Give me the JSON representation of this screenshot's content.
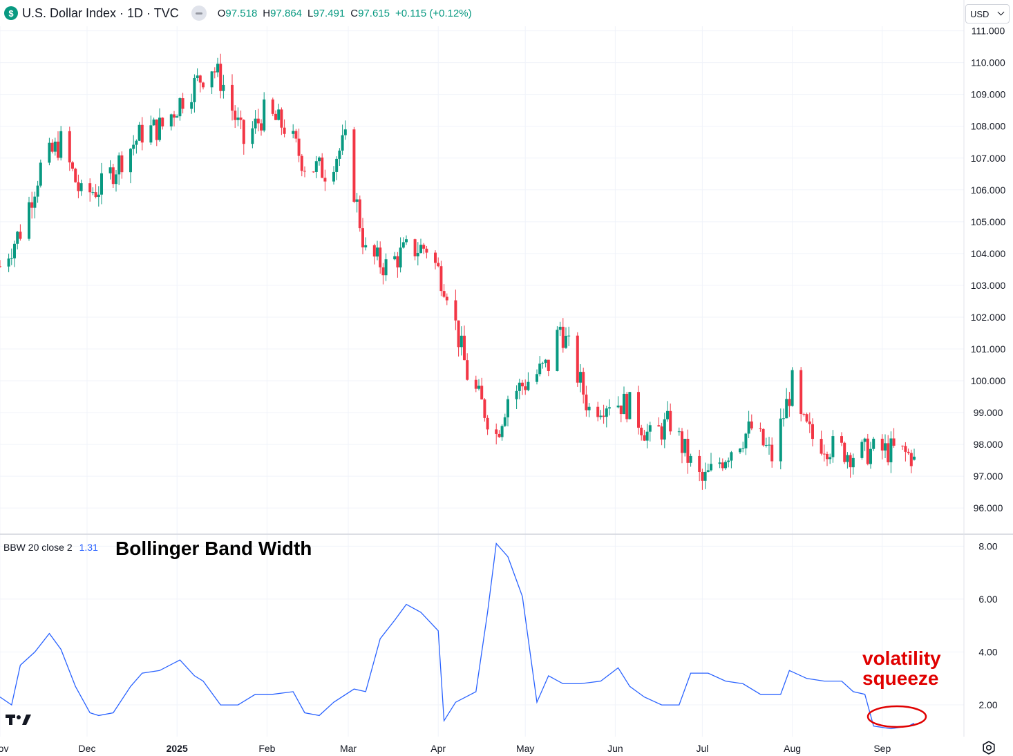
{
  "header": {
    "symbol_badge": "$",
    "title": "U.S. Dollar Index · 1D · TVC",
    "ohlc": [
      {
        "k": "O",
        "v": "97.518"
      },
      {
        "k": "H",
        "v": "97.864"
      },
      {
        "k": "L",
        "v": "97.491"
      },
      {
        "k": "C",
        "v": "97.615"
      }
    ],
    "change": "+0.115 (+0.12%)",
    "currency": "USD"
  },
  "colors": {
    "up": "#089981",
    "down": "#f23645",
    "bbw_line": "#2962ff",
    "annotation": "#e00000"
  },
  "indicator": {
    "name": "BBW 20 close 2",
    "value": "1.31",
    "title": "Bollinger Band Width"
  },
  "annotation": {
    "line1": "volatility",
    "line2": "squeeze"
  },
  "chart_data": [
    {
      "type": "candlestick",
      "title": "U.S. Dollar Index · 1D · TVC",
      "y_ticks": [
        "96.000",
        "97.000",
        "98.000",
        "99.000",
        "100.000",
        "101.000",
        "102.000",
        "103.000",
        "104.000",
        "105.000",
        "106.000",
        "107.000",
        "108.000",
        "109.000",
        "110.000",
        "111.000"
      ],
      "ylim": [
        95.2,
        111.1
      ],
      "x_ticks": [
        "Nov",
        "Dec",
        "2025",
        "Feb",
        "Mar",
        "Apr",
        "May",
        "Jun",
        "Jul",
        "Aug",
        "Sep"
      ],
      "period": "2024-11-01 to 2025-09-12",
      "close_series": [
        {
          "date": "2024-11-01",
          "close": 103.6
        },
        {
          "date": "2024-11-08",
          "close": 104.7
        },
        {
          "date": "2024-11-15",
          "close": 106.7
        },
        {
          "date": "2024-11-22",
          "close": 107.5
        },
        {
          "date": "2024-11-29",
          "close": 105.8
        },
        {
          "date": "2024-12-06",
          "close": 106.1
        },
        {
          "date": "2024-12-13",
          "close": 107.0
        },
        {
          "date": "2024-12-20",
          "close": 107.8
        },
        {
          "date": "2024-12-27",
          "close": 108.0
        },
        {
          "date": "2025-01-03",
          "close": 108.9
        },
        {
          "date": "2025-01-10",
          "close": 109.6
        },
        {
          "date": "2025-01-13",
          "close": 109.9
        },
        {
          "date": "2025-01-17",
          "close": 109.3
        },
        {
          "date": "2025-01-24",
          "close": 107.5
        },
        {
          "date": "2025-01-31",
          "close": 108.4
        },
        {
          "date": "2025-02-07",
          "close": 108.0
        },
        {
          "date": "2025-02-14",
          "close": 106.8
        },
        {
          "date": "2025-02-21",
          "close": 106.6
        },
        {
          "date": "2025-02-28",
          "close": 107.5
        },
        {
          "date": "2025-03-07",
          "close": 104.0
        },
        {
          "date": "2025-03-14",
          "close": 103.6
        },
        {
          "date": "2025-03-21",
          "close": 104.1
        },
        {
          "date": "2025-03-28",
          "close": 104.2
        },
        {
          "date": "2025-04-04",
          "close": 102.9
        },
        {
          "date": "2025-04-11",
          "close": 100.2
        },
        {
          "date": "2025-04-21",
          "close": 98.3
        },
        {
          "date": "2025-04-25",
          "close": 99.5
        },
        {
          "date": "2025-05-02",
          "close": 100.0
        },
        {
          "date": "2025-05-09",
          "close": 100.5
        },
        {
          "date": "2025-05-13",
          "close": 101.7
        },
        {
          "date": "2025-05-16",
          "close": 101.0
        },
        {
          "date": "2025-05-23",
          "close": 99.1
        },
        {
          "date": "2025-05-30",
          "close": 99.4
        },
        {
          "date": "2025-06-06",
          "close": 99.2
        },
        {
          "date": "2025-06-13",
          "close": 98.2
        },
        {
          "date": "2025-06-20",
          "close": 98.7
        },
        {
          "date": "2025-06-27",
          "close": 97.4
        },
        {
          "date": "2025-07-01",
          "close": 96.8
        },
        {
          "date": "2025-07-11",
          "close": 97.9
        },
        {
          "date": "2025-07-18",
          "close": 98.5
        },
        {
          "date": "2025-07-25",
          "close": 97.6
        },
        {
          "date": "2025-08-01",
          "close": 99.9
        },
        {
          "date": "2025-08-04",
          "close": 98.7
        },
        {
          "date": "2025-08-08",
          "close": 98.2
        },
        {
          "date": "2025-08-15",
          "close": 97.9
        },
        {
          "date": "2025-08-22",
          "close": 97.7
        },
        {
          "date": "2025-08-29",
          "close": 97.8
        },
        {
          "date": "2025-09-05",
          "close": 97.8
        },
        {
          "date": "2025-09-12",
          "close": 97.615
        }
      ]
    },
    {
      "type": "line",
      "title": "Bollinger Band Width",
      "legend": "BBW 20 close 2",
      "y_ticks": [
        "2.00",
        "4.00",
        "6.00",
        "8.00"
      ],
      "ylim": [
        0.8,
        8.4
      ],
      "x": [
        "2024-11-01",
        "2024-11-05",
        "2024-11-08",
        "2024-11-13",
        "2024-11-18",
        "2024-11-22",
        "2024-11-27",
        "2024-12-02",
        "2024-12-05",
        "2024-12-10",
        "2024-12-16",
        "2024-12-20",
        "2024-12-26",
        "2025-01-02",
        "2025-01-07",
        "2025-01-10",
        "2025-01-16",
        "2025-01-22",
        "2025-01-28",
        "2025-02-03",
        "2025-02-10",
        "2025-02-14",
        "2025-02-19",
        "2025-02-24",
        "2025-03-03",
        "2025-03-07",
        "2025-03-12",
        "2025-03-17",
        "2025-03-21",
        "2025-03-26",
        "2025-04-01",
        "2025-04-03",
        "2025-04-07",
        "2025-04-14",
        "2025-04-18",
        "2025-04-21",
        "2025-04-25",
        "2025-04-30",
        "2025-05-05",
        "2025-05-09",
        "2025-05-14",
        "2025-05-20",
        "2025-05-27",
        "2025-06-02",
        "2025-06-06",
        "2025-06-11",
        "2025-06-17",
        "2025-06-23",
        "2025-06-27",
        "2025-07-03",
        "2025-07-09",
        "2025-07-15",
        "2025-07-21",
        "2025-07-28",
        "2025-07-31",
        "2025-08-06",
        "2025-08-12",
        "2025-08-18",
        "2025-08-22",
        "2025-08-26",
        "2025-08-29",
        "2025-09-04",
        "2025-09-10",
        "2025-09-12"
      ],
      "y": [
        2.3,
        2.0,
        3.5,
        4.0,
        4.7,
        4.1,
        2.7,
        1.7,
        1.6,
        1.7,
        2.7,
        3.2,
        3.3,
        3.7,
        3.1,
        2.9,
        2.0,
        2.0,
        2.4,
        2.4,
        2.5,
        1.7,
        1.6,
        2.1,
        2.6,
        2.5,
        4.5,
        5.2,
        5.8,
        5.5,
        4.8,
        1.4,
        2.1,
        2.5,
        5.5,
        8.1,
        7.6,
        6.1,
        2.1,
        3.1,
        2.8,
        2.8,
        2.9,
        3.4,
        2.7,
        2.3,
        2.0,
        2.0,
        3.2,
        3.2,
        2.9,
        2.8,
        2.4,
        2.4,
        3.3,
        3.0,
        2.9,
        2.9,
        2.5,
        2.4,
        1.2,
        1.1,
        1.2,
        1.31
      ]
    }
  ]
}
